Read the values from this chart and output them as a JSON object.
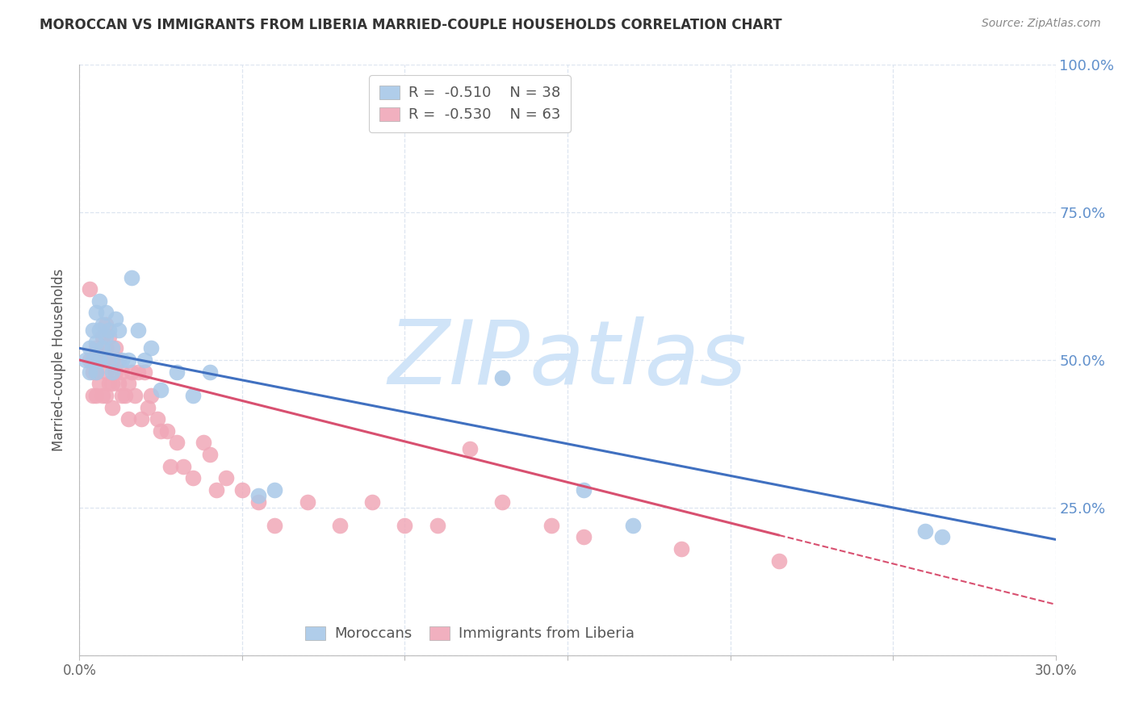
{
  "title": "MOROCCAN VS IMMIGRANTS FROM LIBERIA MARRIED-COUPLE HOUSEHOLDS CORRELATION CHART",
  "source": "Source: ZipAtlas.com",
  "ylabel": "Married-couple Households",
  "xlim": [
    0.0,
    0.3
  ],
  "ylim": [
    0.0,
    1.0
  ],
  "xticks": [
    0.0,
    0.05,
    0.1,
    0.15,
    0.2,
    0.25,
    0.3
  ],
  "xticklabels": [
    "0.0%",
    "",
    "",
    "",
    "",
    "",
    "30.0%"
  ],
  "yticks": [
    0.0,
    0.25,
    0.5,
    0.75,
    1.0
  ],
  "yticklabels_right": [
    "",
    "25.0%",
    "50.0%",
    "75.0%",
    "100.0%"
  ],
  "moroccan_R": -0.51,
  "moroccan_N": 38,
  "liberia_R": -0.53,
  "liberia_N": 63,
  "blue_scatter_color": "#a8c8e8",
  "pink_scatter_color": "#f0a8b8",
  "blue_line_color": "#4070c0",
  "pink_line_color": "#d85070",
  "watermark": "ZIPatlas",
  "watermark_color": "#d0e4f8",
  "background_color": "#ffffff",
  "grid_color": "#dde5f0",
  "moroccan_x": [
    0.002,
    0.003,
    0.003,
    0.004,
    0.004,
    0.005,
    0.005,
    0.005,
    0.006,
    0.006,
    0.006,
    0.007,
    0.007,
    0.008,
    0.008,
    0.009,
    0.009,
    0.01,
    0.01,
    0.011,
    0.012,
    0.013,
    0.015,
    0.016,
    0.018,
    0.02,
    0.022,
    0.025,
    0.03,
    0.035,
    0.04,
    0.055,
    0.06,
    0.13,
    0.155,
    0.17,
    0.26,
    0.265
  ],
  "moroccan_y": [
    0.5,
    0.52,
    0.48,
    0.55,
    0.5,
    0.58,
    0.53,
    0.48,
    0.6,
    0.55,
    0.5,
    0.56,
    0.52,
    0.58,
    0.54,
    0.55,
    0.5,
    0.52,
    0.48,
    0.57,
    0.55,
    0.5,
    0.5,
    0.64,
    0.55,
    0.5,
    0.52,
    0.45,
    0.48,
    0.44,
    0.48,
    0.27,
    0.28,
    0.47,
    0.28,
    0.22,
    0.21,
    0.2
  ],
  "liberia_x": [
    0.003,
    0.003,
    0.004,
    0.004,
    0.005,
    0.005,
    0.005,
    0.006,
    0.006,
    0.007,
    0.007,
    0.007,
    0.008,
    0.008,
    0.008,
    0.008,
    0.009,
    0.009,
    0.009,
    0.01,
    0.01,
    0.01,
    0.011,
    0.011,
    0.012,
    0.012,
    0.013,
    0.013,
    0.014,
    0.015,
    0.015,
    0.016,
    0.017,
    0.018,
    0.019,
    0.02,
    0.021,
    0.022,
    0.024,
    0.025,
    0.027,
    0.028,
    0.03,
    0.032,
    0.035,
    0.038,
    0.04,
    0.042,
    0.045,
    0.05,
    0.055,
    0.06,
    0.07,
    0.08,
    0.09,
    0.1,
    0.11,
    0.12,
    0.13,
    0.145,
    0.155,
    0.185,
    0.215
  ],
  "liberia_y": [
    0.62,
    0.5,
    0.48,
    0.44,
    0.52,
    0.48,
    0.44,
    0.5,
    0.46,
    0.54,
    0.5,
    0.44,
    0.56,
    0.52,
    0.48,
    0.44,
    0.54,
    0.5,
    0.46,
    0.5,
    0.46,
    0.42,
    0.52,
    0.48,
    0.5,
    0.46,
    0.48,
    0.44,
    0.44,
    0.46,
    0.4,
    0.48,
    0.44,
    0.48,
    0.4,
    0.48,
    0.42,
    0.44,
    0.4,
    0.38,
    0.38,
    0.32,
    0.36,
    0.32,
    0.3,
    0.36,
    0.34,
    0.28,
    0.3,
    0.28,
    0.26,
    0.22,
    0.26,
    0.22,
    0.26,
    0.22,
    0.22,
    0.35,
    0.26,
    0.22,
    0.2,
    0.18,
    0.16
  ],
  "blue_intercept": 0.52,
  "blue_slope": -1.08,
  "pink_intercept": 0.5,
  "pink_slope": -1.38
}
